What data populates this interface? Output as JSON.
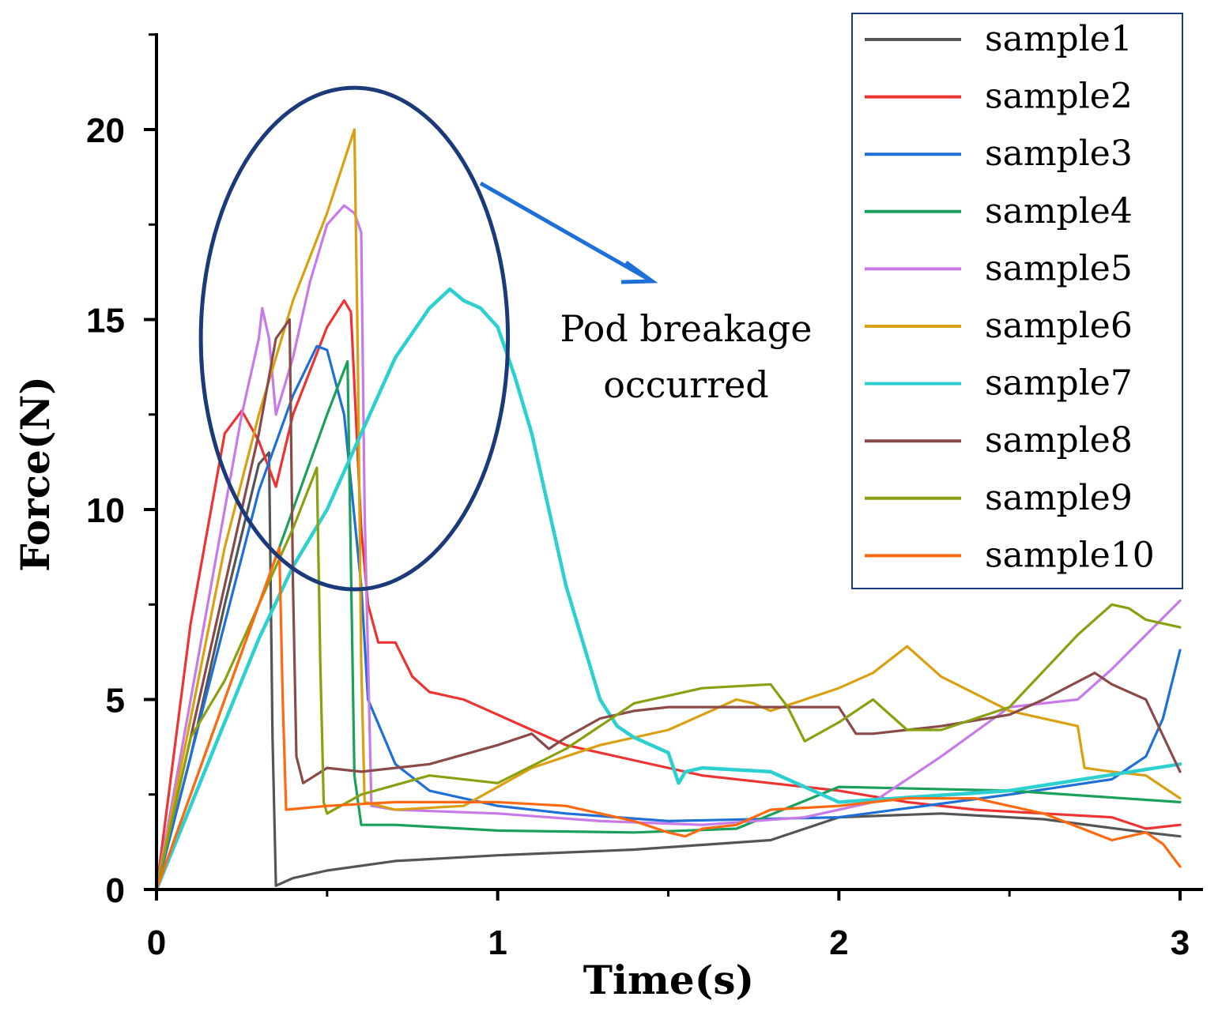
{
  "chart_data": {
    "type": "line",
    "xlabel": "Time(s)",
    "ylabel": "Force(N)",
    "xlim": [
      0,
      3
    ],
    "ylim": [
      0,
      22.5
    ],
    "xticks": [
      0,
      1,
      2,
      3
    ],
    "yticks": [
      0,
      5,
      10,
      15,
      20
    ],
    "grid": false,
    "legend_position": "top-right",
    "annotation": {
      "line1": "Pod breakage",
      "line2": "occurred"
    },
    "highlight_ellipse": {
      "cx": 0.58,
      "cy": 14.5,
      "rx": 0.45,
      "ry": 6.6
    },
    "series": [
      {
        "name": "sample1",
        "color": "#555555",
        "x": [
          0,
          0.1,
          0.2,
          0.3,
          0.33,
          0.34,
          0.35,
          0.4,
          0.5,
          0.7,
          1.0,
          1.4,
          1.8,
          2.0,
          2.3,
          2.6,
          2.9,
          3.0
        ],
        "y": [
          0,
          3.5,
          7.5,
          11.2,
          11.5,
          4,
          0.1,
          0.3,
          0.5,
          0.75,
          0.9,
          1.05,
          1.3,
          1.9,
          2.0,
          1.85,
          1.5,
          1.4
        ]
      },
      {
        "name": "sample2",
        "color": "#ee3333",
        "x": [
          0,
          0.1,
          0.2,
          0.25,
          0.3,
          0.35,
          0.4,
          0.5,
          0.55,
          0.57,
          0.6,
          0.62,
          0.65,
          0.7,
          0.75,
          0.8,
          0.9,
          1.0,
          1.1,
          1.2,
          1.4,
          1.6,
          1.8,
          2.0,
          2.2,
          2.4,
          2.6,
          2.8,
          2.9,
          3.0
        ],
        "y": [
          0,
          7,
          12,
          12.6,
          11.8,
          10.6,
          12.5,
          14.8,
          15.5,
          15.2,
          9.5,
          7.5,
          6.5,
          6.5,
          5.6,
          5.2,
          5.0,
          4.6,
          4.2,
          3.8,
          3.4,
          3.0,
          2.8,
          2.6,
          2.3,
          2.1,
          2.0,
          1.9,
          1.6,
          1.7
        ]
      },
      {
        "name": "sample3",
        "color": "#1f6fd8",
        "x": [
          0,
          0.1,
          0.2,
          0.3,
          0.4,
          0.47,
          0.5,
          0.55,
          0.6,
          0.62,
          0.7,
          0.8,
          1.0,
          1.2,
          1.5,
          2.0,
          2.5,
          2.8,
          2.9,
          2.95,
          3.0
        ],
        "y": [
          0,
          3.5,
          7,
          10.5,
          13,
          14.3,
          14.2,
          12.5,
          8,
          5,
          3.3,
          2.6,
          2.2,
          2.0,
          1.8,
          1.9,
          2.5,
          2.9,
          3.5,
          4.5,
          6.3
        ]
      },
      {
        "name": "sample4",
        "color": "#1aa05a",
        "x": [
          0,
          0.1,
          0.2,
          0.3,
          0.4,
          0.5,
          0.56,
          0.58,
          0.6,
          0.7,
          1.0,
          1.4,
          1.7,
          2.0,
          2.5,
          3.0
        ],
        "y": [
          0,
          2.5,
          5,
          7.5,
          10,
          12.5,
          13.9,
          3,
          1.7,
          1.7,
          1.55,
          1.5,
          1.6,
          2.7,
          2.6,
          2.3
        ]
      },
      {
        "name": "sample5",
        "color": "#c77ae8",
        "x": [
          0,
          0.1,
          0.2,
          0.25,
          0.3,
          0.31,
          0.33,
          0.35,
          0.4,
          0.45,
          0.5,
          0.55,
          0.58,
          0.6,
          0.61,
          0.63,
          0.7,
          1.0,
          1.3,
          1.6,
          1.9,
          2.1,
          2.3,
          2.5,
          2.7,
          2.8,
          3.0
        ],
        "y": [
          0,
          5,
          10,
          12.5,
          14.5,
          15.3,
          14.5,
          12.5,
          14,
          16,
          17.5,
          18,
          17.8,
          17.3,
          10,
          2.2,
          2.1,
          2.0,
          1.8,
          1.7,
          1.9,
          2.3,
          3.5,
          4.8,
          5.0,
          5.8,
          7.6
        ]
      },
      {
        "name": "sample6",
        "color": "#d9a012",
        "x": [
          0,
          0.1,
          0.2,
          0.3,
          0.4,
          0.5,
          0.58,
          0.59,
          0.6,
          0.61,
          0.7,
          0.9,
          1.1,
          1.3,
          1.5,
          1.7,
          1.75,
          1.8,
          2.0,
          2.1,
          2.2,
          2.3,
          2.5,
          2.7,
          2.72,
          2.8,
          2.9,
          3.0
        ],
        "y": [
          0,
          4.5,
          9,
          12.5,
          15.5,
          17.8,
          20,
          14,
          6,
          2.3,
          2.1,
          2.2,
          3.2,
          3.8,
          4.2,
          5.0,
          4.9,
          4.7,
          5.3,
          5.7,
          6.4,
          5.6,
          4.7,
          4.3,
          3.2,
          3.1,
          3.0,
          2.4
        ]
      },
      {
        "name": "sample7",
        "color": "#2cd0d0",
        "x": [
          0,
          0.1,
          0.2,
          0.3,
          0.4,
          0.5,
          0.6,
          0.7,
          0.8,
          0.86,
          0.9,
          0.95,
          1.0,
          1.05,
          1.1,
          1.15,
          1.2,
          1.25,
          1.3,
          1.35,
          1.4,
          1.45,
          1.5,
          1.53,
          1.55,
          1.6,
          1.8,
          2.0,
          2.5,
          3.0
        ],
        "y": [
          0,
          2.2,
          4.4,
          6.6,
          8.5,
          10,
          12,
          14,
          15.3,
          15.8,
          15.5,
          15.3,
          14.8,
          13.5,
          12,
          10,
          8,
          6.5,
          5,
          4.3,
          4.0,
          3.8,
          3.6,
          2.8,
          3.1,
          3.2,
          3.1,
          2.3,
          2.6,
          3.3
        ]
      },
      {
        "name": "sample8",
        "color": "#8a4a4a",
        "x": [
          0,
          0.1,
          0.2,
          0.3,
          0.35,
          0.39,
          0.4,
          0.41,
          0.43,
          0.5,
          0.6,
          0.8,
          1.0,
          1.1,
          1.15,
          1.2,
          1.3,
          1.4,
          1.5,
          1.7,
          2.0,
          2.05,
          2.1,
          2.3,
          2.5,
          2.6,
          2.75,
          2.8,
          2.9,
          3.0
        ],
        "y": [
          0,
          4,
          8,
          12,
          14.5,
          15,
          8,
          3.5,
          2.8,
          3.2,
          3.1,
          3.3,
          3.8,
          4.1,
          3.7,
          4.0,
          4.5,
          4.7,
          4.8,
          4.8,
          4.8,
          4.1,
          4.1,
          4.3,
          4.6,
          5.0,
          5.7,
          5.4,
          5.0,
          3.1
        ]
      },
      {
        "name": "sample9",
        "color": "#8aa010",
        "x": [
          0,
          0.1,
          0.2,
          0.3,
          0.4,
          0.47,
          0.48,
          0.49,
          0.5,
          0.6,
          0.8,
          1.0,
          1.2,
          1.4,
          1.6,
          1.8,
          1.85,
          1.9,
          2.0,
          2.1,
          2.2,
          2.3,
          2.4,
          2.5,
          2.7,
          2.8,
          2.85,
          2.9,
          3.0
        ],
        "y": [
          0,
          4,
          5.5,
          7.5,
          9.5,
          11.1,
          6,
          2.3,
          2.0,
          2.5,
          3.0,
          2.8,
          3.7,
          4.9,
          5.3,
          5.4,
          4.8,
          3.9,
          4.4,
          5.0,
          4.2,
          4.2,
          4.5,
          4.8,
          6.7,
          7.5,
          7.4,
          7.1,
          6.9
        ]
      },
      {
        "name": "sample10",
        "color": "#ff6a10",
        "x": [
          0,
          0.1,
          0.2,
          0.3,
          0.36,
          0.37,
          0.38,
          0.5,
          0.7,
          0.9,
          1.0,
          1.2,
          1.4,
          1.5,
          1.55,
          1.6,
          1.7,
          1.8,
          2.0,
          2.2,
          2.4,
          2.6,
          2.8,
          2.9,
          2.95,
          3.0
        ],
        "y": [
          0,
          2.5,
          5,
          7.5,
          9,
          5,
          2.1,
          2.2,
          2.3,
          2.3,
          2.3,
          2.2,
          1.8,
          1.5,
          1.4,
          1.6,
          1.7,
          2.1,
          2.2,
          2.4,
          2.4,
          2.0,
          1.3,
          1.5,
          1.2,
          0.6
        ]
      }
    ]
  }
}
